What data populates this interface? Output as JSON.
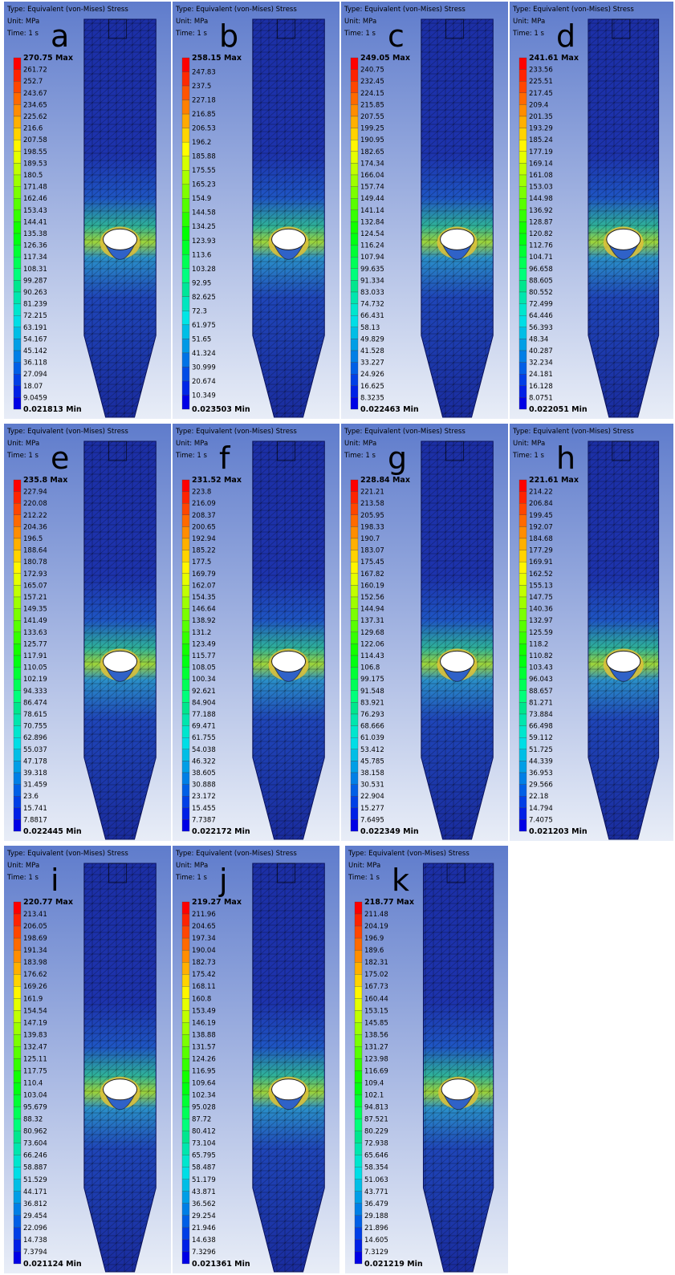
{
  "panels": [
    {
      "letter": "a",
      "type": "Type: Equivalent (von-Mises) Stress",
      "unit": "Unit: MPa",
      "time": "Time: 1 s",
      "legend": [
        "270.75 Max",
        "261.72",
        "252.7",
        "243.67",
        "234.65",
        "225.62",
        "216.6",
        "207.58",
        "198.55",
        "189.53",
        "180.5",
        "171.48",
        "162.46",
        "153.43",
        "144.41",
        "135.38",
        "126.36",
        "117.34",
        "108.31",
        "99.287",
        "90.263",
        "81.239",
        "72.215",
        "63.191",
        "54.167",
        "45.142",
        "36.118",
        "27.094",
        "18.07",
        "9.0459",
        "0.021813 Min"
      ]
    },
    {
      "letter": "b",
      "type": "Type: Equivalent (von-Mises) Stress",
      "unit": "Unit: MPa",
      "time": "Time: 1 s",
      "legend": [
        "258.15 Max",
        "247.83",
        "237.5",
        "227.18",
        "216.85",
        "206.53",
        "196.2",
        "185.88",
        "175.55",
        "165.23",
        "154.9",
        "144.58",
        "134.25",
        "123.93",
        "113.6",
        "103.28",
        "92.95",
        "82.625",
        "72.3",
        "61.975",
        "51.65",
        "41.324",
        "30.999",
        "20.674",
        "10.349",
        "0.023503 Min"
      ]
    },
    {
      "letter": "c",
      "type": "Type: Equivalent (von-Mises) Stress",
      "unit": "Unit: MPa",
      "time": "Time: 1 s",
      "legend": [
        "249.05 Max",
        "240.75",
        "232.45",
        "224.15",
        "215.85",
        "207.55",
        "199.25",
        "190.95",
        "182.65",
        "174.34",
        "166.04",
        "157.74",
        "149.44",
        "141.14",
        "132.84",
        "124.54",
        "116.24",
        "107.94",
        "99.635",
        "91.334",
        "83.033",
        "74.732",
        "66.431",
        "58.13",
        "49.829",
        "41.528",
        "33.227",
        "24.926",
        "16.625",
        "8.3235",
        "0.022463 Min"
      ]
    },
    {
      "letter": "d",
      "type": "Type: Equivalent (von-Mises) Stress",
      "unit": "Unit: MPa",
      "time": "Time: 1 s",
      "legend": [
        "241.61 Max",
        "233.56",
        "225.51",
        "217.45",
        "209.4",
        "201.35",
        "193.29",
        "185.24",
        "177.19",
        "169.14",
        "161.08",
        "153.03",
        "144.98",
        "136.92",
        "128.87",
        "120.82",
        "112.76",
        "104.71",
        "96.658",
        "88.605",
        "80.552",
        "72.499",
        "64.446",
        "56.393",
        "48.34",
        "40.287",
        "32.234",
        "24.181",
        "16.128",
        "8.0751",
        "0.022051 Min"
      ]
    },
    {
      "letter": "e",
      "type": "Type: Equivalent (von-Mises) Stress",
      "unit": "Unit: MPa",
      "time": "Time: 1 s",
      "legend": [
        "235.8 Max",
        "227.94",
        "220.08",
        "212.22",
        "204.36",
        "196.5",
        "188.64",
        "180.78",
        "172.93",
        "165.07",
        "157.21",
        "149.35",
        "141.49",
        "133.63",
        "125.77",
        "117.91",
        "110.05",
        "102.19",
        "94.333",
        "86.474",
        "78.615",
        "70.755",
        "62.896",
        "55.037",
        "47.178",
        "39.318",
        "31.459",
        "23.6",
        "15.741",
        "7.8817",
        "0.022445 Min"
      ]
    },
    {
      "letter": "f",
      "type": "Type: Equivalent (von-Mises) Stress",
      "unit": "Unit: MPa",
      "time": "Time: 1 s",
      "legend": [
        "231.52 Max",
        "223.8",
        "216.09",
        "208.37",
        "200.65",
        "192.94",
        "185.22",
        "177.5",
        "169.79",
        "162.07",
        "154.35",
        "146.64",
        "138.92",
        "131.2",
        "123.49",
        "115.77",
        "108.05",
        "100.34",
        "92.621",
        "84.904",
        "77.188",
        "69.471",
        "61.755",
        "54.038",
        "46.322",
        "38.605",
        "30.888",
        "23.172",
        "15.455",
        "7.7387",
        "0.022172 Min"
      ]
    },
    {
      "letter": "g",
      "type": "Type: Equivalent (von-Mises) Stress",
      "unit": "Unit: MPa",
      "time": "Time: 1 s",
      "legend": [
        "228.84 Max",
        "221.21",
        "213.58",
        "205.95",
        "198.33",
        "190.7",
        "183.07",
        "175.45",
        "167.82",
        "160.19",
        "152.56",
        "144.94",
        "137.31",
        "129.68",
        "122.06",
        "114.43",
        "106.8",
        "99.175",
        "91.548",
        "83.921",
        "76.293",
        "68.666",
        "61.039",
        "53.412",
        "45.785",
        "38.158",
        "30.531",
        "22.904",
        "15.277",
        "7.6495",
        "0.022349 Min"
      ]
    },
    {
      "letter": "h",
      "type": "Type: Equivalent (von-Mises) Stress",
      "unit": "Unit: MPa",
      "time": "Time: 1 s",
      "legend": [
        "221.61 Max",
        "214.22",
        "206.84",
        "199.45",
        "192.07",
        "184.68",
        "177.29",
        "169.91",
        "162.52",
        "155.13",
        "147.75",
        "140.36",
        "132.97",
        "125.59",
        "118.2",
        "110.82",
        "103.43",
        "96.043",
        "88.657",
        "81.271",
        "73.884",
        "66.498",
        "59.112",
        "51.725",
        "44.339",
        "36.953",
        "29.566",
        "22.18",
        "14.794",
        "7.4075",
        "0.021203 Min"
      ]
    },
    {
      "letter": "i",
      "type": "Type: Equivalent (von-Mises) Stress",
      "unit": "Unit: MPa",
      "time": "Time: 1 s",
      "legend": [
        "220.77 Max",
        "213.41",
        "206.05",
        "198.69",
        "191.34",
        "183.98",
        "176.62",
        "169.26",
        "161.9",
        "154.54",
        "147.19",
        "139.83",
        "132.47",
        "125.11",
        "117.75",
        "110.4",
        "103.04",
        "95.679",
        "88.32",
        "80.962",
        "73.604",
        "66.246",
        "58.887",
        "51.529",
        "44.171",
        "36.812",
        "29.454",
        "22.096",
        "14.738",
        "7.3794",
        "0.021124 Min"
      ]
    },
    {
      "letter": "j",
      "type": "Type: Equivalent (von-Mises) Stress",
      "unit": "Unit: MPa",
      "time": "Time: 1 s",
      "legend": [
        "219.27 Max",
        "211.96",
        "204.65",
        "197.34",
        "190.04",
        "182.73",
        "175.42",
        "168.11",
        "160.8",
        "153.49",
        "146.19",
        "138.88",
        "131.57",
        "124.26",
        "116.95",
        "109.64",
        "102.34",
        "95.028",
        "87.72",
        "80.412",
        "73.104",
        "65.795",
        "58.487",
        "51.179",
        "43.871",
        "36.562",
        "29.254",
        "21.946",
        "14.638",
        "7.3296",
        "0.021361 Min"
      ]
    },
    {
      "letter": "k",
      "type": "Type: Equivalent (von-Mises) Stress",
      "unit": "Unit: MPa",
      "time": "Time: 1 s",
      "legend": [
        "218.77 Max",
        "211.48",
        "204.19",
        "196.9",
        "189.6",
        "182.31",
        "175.02",
        "167.73",
        "160.44",
        "153.15",
        "145.85",
        "138.56",
        "131.27",
        "123.98",
        "116.69",
        "109.4",
        "102.1",
        "94.813",
        "87.521",
        "80.229",
        "72.938",
        "65.646",
        "58.354",
        "51.063",
        "43.771",
        "36.479",
        "29.188",
        "21.896",
        "14.605",
        "7.3129",
        "0.021219 Min"
      ]
    }
  ]
}
